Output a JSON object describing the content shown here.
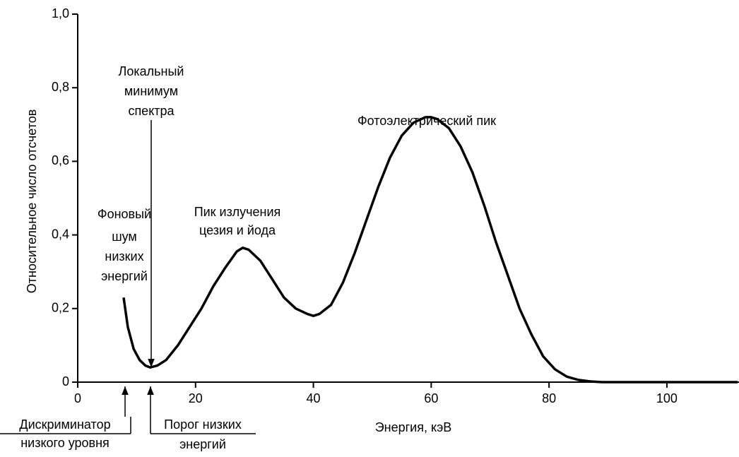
{
  "chart_data": {
    "type": "line",
    "xlabel": "Энергия, кэВ",
    "ylabel": "Относительное число отсчетов",
    "x": [
      7.8,
      8.5,
      9.5,
      10.5,
      11.5,
      12.3,
      13.5,
      15,
      17,
      19,
      21,
      23,
      25,
      27,
      28,
      29,
      31,
      33,
      35,
      37,
      39,
      40,
      41,
      43,
      45,
      47,
      49,
      51,
      53,
      55,
      57,
      59,
      60,
      61,
      63,
      65,
      67,
      69,
      71,
      73,
      75,
      77,
      79,
      81,
      83,
      85,
      87,
      89,
      92,
      100,
      112
    ],
    "values": [
      0.23,
      0.15,
      0.09,
      0.06,
      0.045,
      0.04,
      0.045,
      0.06,
      0.1,
      0.15,
      0.2,
      0.26,
      0.31,
      0.355,
      0.365,
      0.36,
      0.33,
      0.28,
      0.23,
      0.2,
      0.185,
      0.18,
      0.185,
      0.21,
      0.27,
      0.35,
      0.44,
      0.53,
      0.61,
      0.67,
      0.705,
      0.72,
      0.72,
      0.715,
      0.69,
      0.64,
      0.57,
      0.48,
      0.38,
      0.29,
      0.2,
      0.13,
      0.07,
      0.035,
      0.015,
      0.006,
      0.002,
      0,
      0,
      0,
      0
    ],
    "color": "#000000",
    "xlim": [
      0,
      112
    ],
    "ylim": [
      0,
      1
    ],
    "xticks": [
      0,
      20,
      40,
      60,
      80,
      100
    ],
    "yticks": [
      0,
      {
        "value": 0.2,
        "label": "0,2"
      },
      {
        "value": 0.4,
        "label": "0,4"
      },
      {
        "value": 0.6,
        "label": "0,6"
      },
      {
        "value": 0.8,
        "label": "0,8"
      },
      {
        "value": 1,
        "label": "1,0"
      }
    ],
    "annotations": [
      {
        "lines": [
          "Фоновый",
          "шум",
          "низких",
          "энергий"
        ]
      },
      {
        "lines": [
          "Локальный",
          "минимум",
          "спектра"
        ]
      },
      {
        "lines": [
          "Пик излучения",
          "цезия и йода"
        ]
      },
      {
        "lines": [
          "Фотоэлектрический пик"
        ]
      },
      {
        "lines": [
          "Дискриминатор",
          "низкого уровня"
        ]
      },
      {
        "lines": [
          "Порог низких",
          "энергий"
        ]
      }
    ]
  }
}
